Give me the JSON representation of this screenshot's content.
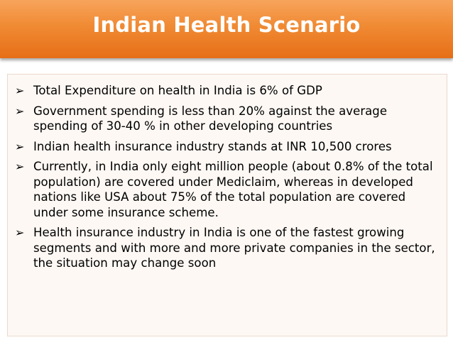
{
  "slide": {
    "title": "Indian Health Scenario",
    "bullet_marker": "➢",
    "bullets": [
      "Total Expenditure on health in India is 6% of GDP",
      "Government spending is less than 20% against the average spending of 30-40 % in other developing countries",
      "Indian health insurance industry stands at INR 10,500 crores",
      "Currently, in India only eight million people (about 0.8% of the total population) are covered under Mediclaim, whereas in developed nations like USA about 75% of the total population are covered under some insurance scheme.",
      "Health insurance industry in India is one of the fastest growing segments and with more and more private companies in the sector, the situation may change soon"
    ]
  },
  "colors": {
    "header_top": "#f7a45c",
    "header_bottom": "#e66f17",
    "title_text": "#ffffff",
    "body_background": "#fdf8f4"
  }
}
